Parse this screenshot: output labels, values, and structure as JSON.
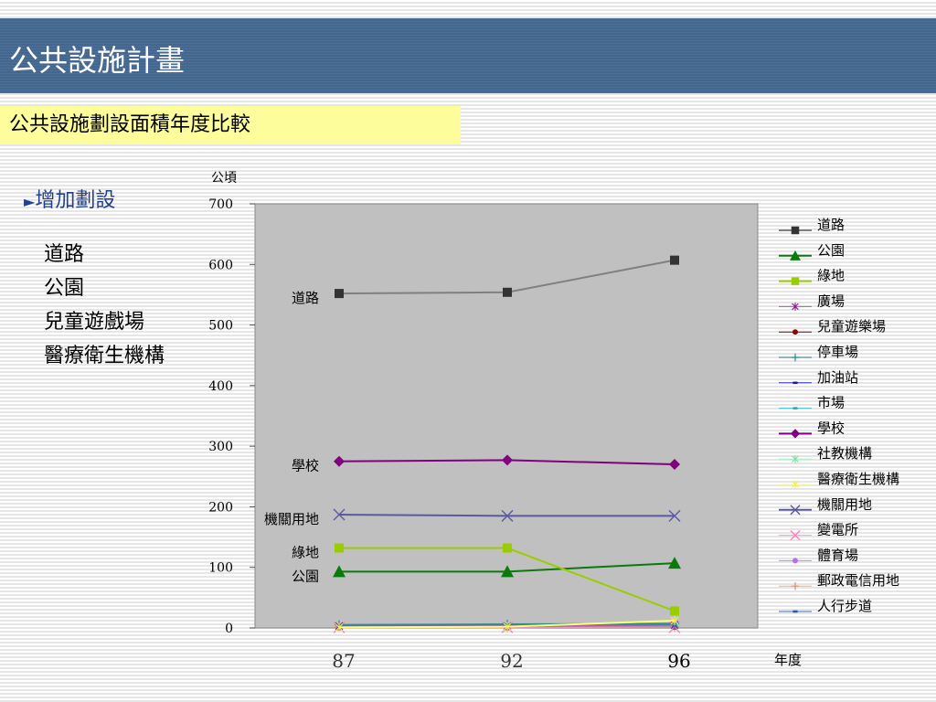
{
  "header": {
    "title": "公共設施計畫"
  },
  "subtitle": "公共設施劃設面積年度比較",
  "bullet": {
    "marker": "►",
    "label": "增加劃設"
  },
  "list_items": [
    "道路",
    "公園",
    "兒童遊戲場",
    "醫療衛生機構"
  ],
  "colors": {
    "header_bg": "#44678f",
    "subtitle_bg": "#fdfd9c",
    "plot_bg": "#c0c0c0",
    "bullet_text": "#1f3f8f"
  },
  "chart_data": {
    "type": "line",
    "title": "",
    "ylabel": "公頃",
    "xlabel": "年度",
    "ylim": [
      0,
      700
    ],
    "yticks": [
      0,
      100,
      200,
      300,
      400,
      500,
      600,
      700
    ],
    "categories": [
      "87",
      "92",
      "96"
    ],
    "grid": false,
    "legend_position": "right",
    "series": [
      {
        "name": "道路",
        "values": [
          552,
          554,
          607
        ],
        "color": "#808080",
        "marker": "square",
        "marker_color": "#333333",
        "label": "道路"
      },
      {
        "name": "公園",
        "values": [
          93,
          93,
          107
        ],
        "color": "#0a7a0a",
        "marker": "triangle",
        "marker_color": "#0a7a0a",
        "label": "公園"
      },
      {
        "name": "綠地",
        "values": [
          132,
          132,
          28
        ],
        "color": "#9acd00",
        "marker": "square",
        "marker_color": "#9acd00",
        "label": "綠地"
      },
      {
        "name": "廣場",
        "values": [
          3,
          3,
          5
        ],
        "color": "#b05ab0",
        "marker": "star",
        "marker_color": "#8b1a8b",
        "label": ""
      },
      {
        "name": "兒童遊樂場",
        "values": [
          1,
          1,
          2
        ],
        "color": "#8b0000",
        "marker": "circle",
        "marker_color": "#8b0000",
        "label": ""
      },
      {
        "name": "停車場",
        "values": [
          5,
          6,
          7
        ],
        "color": "#2e8b8b",
        "marker": "plus",
        "marker_color": "#2e8b8b",
        "label": ""
      },
      {
        "name": "加油站",
        "values": [
          2,
          2,
          2
        ],
        "color": "#3333cc",
        "marker": "dash",
        "marker_color": "#1a1aa0",
        "label": ""
      },
      {
        "name": "市場",
        "values": [
          4,
          4,
          4
        ],
        "color": "#40c0e0",
        "marker": "dash",
        "marker_color": "#30a0d0",
        "label": ""
      },
      {
        "name": "學校",
        "values": [
          275,
          277,
          270
        ],
        "color": "#800080",
        "marker": "diamond",
        "marker_color": "#800080",
        "label": "學校"
      },
      {
        "name": "社教機構",
        "values": [
          2,
          2,
          2
        ],
        "color": "#a0f0c0",
        "marker": "star",
        "marker_color": "#80e0a0",
        "label": ""
      },
      {
        "name": "醫療衛生機構",
        "values": [
          1,
          2,
          12
        ],
        "color": "#ffff70",
        "marker": "star",
        "marker_color": "#f0f050",
        "label": ""
      },
      {
        "name": "機關用地",
        "values": [
          187,
          185,
          185
        ],
        "color": "#5a5a9a",
        "marker": "x",
        "marker_color": "#5a5aa0",
        "label": "機關用地"
      },
      {
        "name": "變電所",
        "values": [
          1,
          1,
          1
        ],
        "color": "#ff99cc",
        "marker": "x",
        "marker_color": "#ff80c0",
        "label": ""
      },
      {
        "name": "體育場",
        "values": [
          2,
          2,
          3
        ],
        "color": "#c080ff",
        "marker": "circle",
        "marker_color": "#b070f0",
        "label": ""
      },
      {
        "name": "郵政電信用地",
        "values": [
          1,
          1,
          2
        ],
        "color": "#f0b080",
        "marker": "plus",
        "marker_color": "#e09060",
        "label": ""
      },
      {
        "name": "人行步道",
        "values": [
          1,
          1,
          1
        ],
        "color": "#3a6ab0",
        "marker": "dash",
        "marker_color": "#2a5aa0",
        "label": ""
      }
    ]
  }
}
